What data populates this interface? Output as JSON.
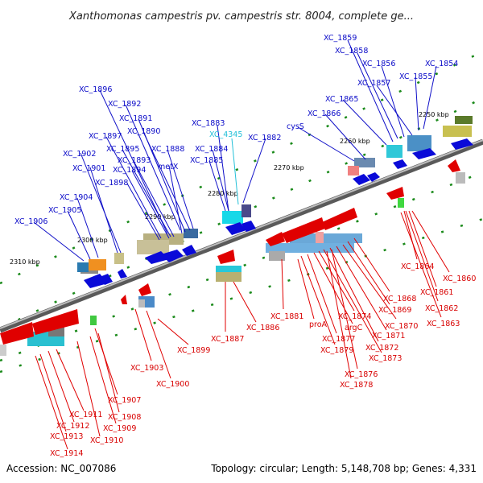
{
  "title": "Xanthomonas campestris pv. campestris str. 8004, complete ge...",
  "footer": {
    "accession": "Accession: NC_007086",
    "stats": "Topology: circular; Length: 5,148,708 bp; Genes: 4,331"
  },
  "colors": {
    "forward_gene": "#0a0ad8",
    "reverse_gene": "#e00000",
    "cyan_label": "#22c0d8",
    "backbone": "#808080"
  },
  "kbp_labels": [
    "2250 kbp",
    "2260 kbp",
    "2270 kbp",
    "2280 kbp",
    "2290 kbp",
    "2300 kbp",
    "2310 kbp"
  ],
  "blue_labels": [
    "XC_1859",
    "XC_1858",
    "XC_1856",
    "XC_1854",
    "XC_1857",
    "XC_1855",
    "XC_1865",
    "XC_1866",
    "cysS",
    "XC_1883",
    "XC_1882",
    "XC_1884",
    "XC_1885",
    "XC_1896",
    "XC_1892",
    "XC_1891",
    "XC_1890",
    "XC_1897",
    "XC_1895",
    "XC_1888",
    "XC_1893",
    "XC_1902",
    "XC_1894",
    "metX",
    "XC_1901",
    "XC_1898",
    "XC_1904",
    "XC_1905",
    "XC_1906"
  ],
  "cyan_labels": [
    "XC_4345"
  ],
  "red_labels": [
    "XC_1864",
    "XC_1860",
    "XC_1861",
    "XC_1862",
    "XC_1863",
    "XC_1868",
    "XC_1869",
    "XC_1870",
    "XC_1871",
    "XC_1872",
    "XC_1873",
    "XC_1874",
    "argC",
    "XC_1877",
    "XC_1879",
    "XC_1876",
    "XC_1878",
    "proA",
    "XC_1881",
    "XC_1886",
    "XC_1887",
    "XC_1899",
    "XC_1903",
    "XC_1900",
    "XC_1907",
    "XC_1908",
    "XC_1909",
    "XC_1910",
    "XC_1911",
    "XC_1912",
    "XC_1913",
    "XC_1914"
  ]
}
